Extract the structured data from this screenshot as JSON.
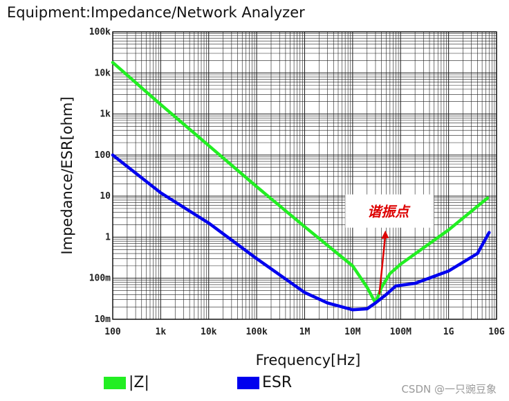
{
  "header": {
    "equipment_title": "Equipment:Impedance/Network Analyzer"
  },
  "chart_data": {
    "type": "line",
    "title": "",
    "xlabel": "Frequency[Hz]",
    "ylabel": "Impedance/ESR[ohm]",
    "xscale": "log",
    "yscale": "log",
    "xlim": [
      100,
      10000000000
    ],
    "ylim": [
      0.01,
      100000
    ],
    "grid": true,
    "x_ticks": [
      {
        "value": 100,
        "label": "100"
      },
      {
        "value": 1000,
        "label": "1k"
      },
      {
        "value": 10000,
        "label": "10k"
      },
      {
        "value": 100000,
        "label": "100k"
      },
      {
        "value": 1000000,
        "label": "1M"
      },
      {
        "value": 10000000,
        "label": "10M"
      },
      {
        "value": 100000000,
        "label": "100M"
      },
      {
        "value": 1000000000,
        "label": "1G"
      },
      {
        "value": 10000000000,
        "label": "10G"
      }
    ],
    "y_ticks": [
      {
        "value": 0.01,
        "label": "10m"
      },
      {
        "value": 0.1,
        "label": "100m"
      },
      {
        "value": 1,
        "label": "1"
      },
      {
        "value": 10,
        "label": "10"
      },
      {
        "value": 100,
        "label": "100"
      },
      {
        "value": 1000,
        "label": "1k"
      },
      {
        "value": 10000,
        "label": "10k"
      },
      {
        "value": 100000,
        "label": "100k"
      }
    ],
    "legend_position": "bottom",
    "series": [
      {
        "name": "|Z|",
        "color": "#22ee22",
        "points": [
          [
            100,
            18000
          ],
          [
            1000,
            1700
          ],
          [
            10000,
            170
          ],
          [
            100000,
            17
          ],
          [
            1000000,
            1.8
          ],
          [
            10000000,
            0.2
          ],
          [
            20000000,
            0.06
          ],
          [
            30000000,
            0.025
          ],
          [
            40000000,
            0.06
          ],
          [
            60000000,
            0.13
          ],
          [
            100000000,
            0.22
          ],
          [
            1000000000,
            1.5
          ],
          [
            6500000000,
            9
          ]
        ]
      },
      {
        "name": "ESR",
        "color": "#0000ee",
        "points": [
          [
            100,
            100
          ],
          [
            1000,
            12
          ],
          [
            10000,
            2.2
          ],
          [
            100000,
            0.3
          ],
          [
            1000000,
            0.045
          ],
          [
            3000000,
            0.025
          ],
          [
            10000000,
            0.017
          ],
          [
            20000000,
            0.018
          ],
          [
            30000000,
            0.025
          ],
          [
            50000000,
            0.04
          ],
          [
            80000000,
            0.065
          ],
          [
            200000000,
            0.075
          ],
          [
            1000000000,
            0.15
          ],
          [
            4000000000,
            0.4
          ],
          [
            7000000000,
            1.3
          ]
        ]
      }
    ],
    "annotations": [
      {
        "text": "谐振点",
        "x": 55000000,
        "y": 4,
        "arrow_to": [
          36000000,
          0.04
        ],
        "color": "#dd0000"
      }
    ]
  },
  "legend": {
    "items": [
      {
        "label": "|Z|",
        "color": "#22ee22"
      },
      {
        "label": "ESR",
        "color": "#0000ee"
      }
    ]
  },
  "watermark": "CSDN @一只豌豆象"
}
